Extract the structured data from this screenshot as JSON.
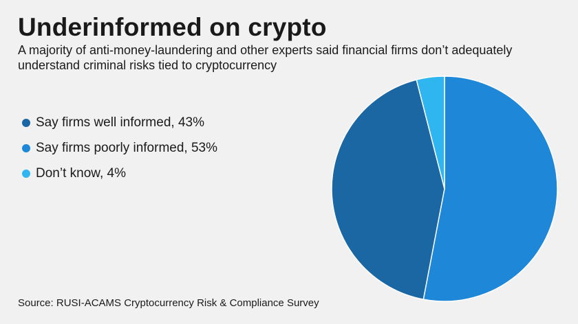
{
  "title": "Underinformed on crypto",
  "subtitle": "A majority of anti-money-laundering and other experts said financial firms don’t adequately understand criminal risks tied to cryptocurrency",
  "source": "Source: RUSI-ACAMS Cryptocurrency Risk & Compliance Survey",
  "chart_data": {
    "type": "pie",
    "legend_position": "left",
    "slices": [
      {
        "label": "Say firms well informed, 43%",
        "value": 43,
        "color": "#1b67a3"
      },
      {
        "label": "Say firms poorly informed, 53%",
        "value": 53,
        "color": "#1e87d8"
      },
      {
        "label": "Don’t know, 4%",
        "value": 4,
        "color": "#2fb5ef"
      }
    ]
  }
}
